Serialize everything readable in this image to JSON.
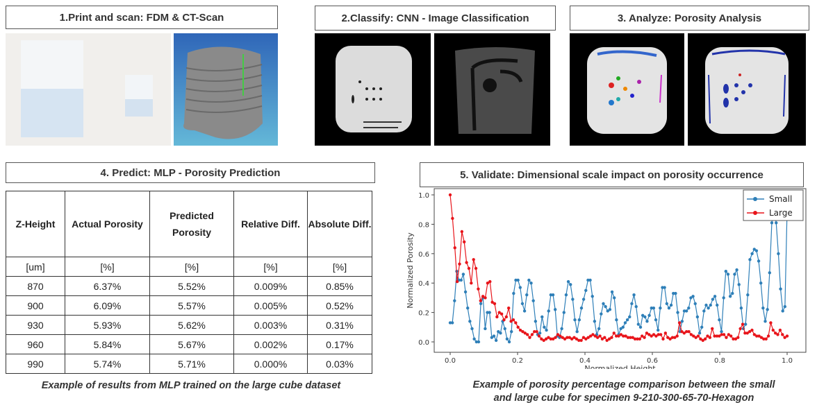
{
  "panels": {
    "p1": {
      "title": "1.Print and scan:  FDM & CT-Scan"
    },
    "p2": {
      "title": "2.Classify:  CNN - Image  Classification"
    },
    "p3": {
      "title": "3. Analyze:  Porosity  Analysis"
    },
    "p4": {
      "title": "4. Predict: MLP - Porosity  Prediction",
      "caption": "Example of results from MLP trained on the large cube dataset"
    },
    "p5": {
      "title": "5. Validate:  Dimensional  scale  impact  on  porosity  occurrence",
      "caption_line1": "Example of porosity percentage comparison between the small",
      "caption_line2": "and large cube for specimen 9-210-300-65-70-Hexagon"
    }
  },
  "table": {
    "headers": [
      "Z-Height",
      "Actual Porosity",
      "Predicted Porosity",
      "Relative Diff.",
      "Absolute Diff."
    ],
    "units": [
      "[um]",
      "[%]",
      "[%]",
      "[%]",
      "[%]"
    ],
    "rows": [
      [
        "870",
        "6.37%",
        "5.52%",
        "0.009%",
        "0.85%"
      ],
      [
        "900",
        "6.09%",
        "5.57%",
        "0.005%",
        "0.52%"
      ],
      [
        "930",
        "5.93%",
        "5.62%",
        "0.003%",
        "0.31%"
      ],
      [
        "960",
        "5.84%",
        "5.67%",
        "0.002%",
        "0.17%"
      ],
      [
        "990",
        "5.74%",
        "5.71%",
        "0.000%",
        "0.03%"
      ]
    ]
  },
  "chart_data": {
    "type": "line",
    "xlabel": "Normalized Height",
    "ylabel": "Normalized Porosity",
    "xlim": [
      0,
      1
    ],
    "ylim": [
      0,
      1
    ],
    "xticks": [
      "0.0",
      "0.2",
      "0.4",
      "0.6",
      "0.8",
      "1.0"
    ],
    "yticks": [
      "0.0",
      "0.2",
      "0.4",
      "0.6",
      "0.8",
      "1.0"
    ],
    "legend_position": "top-right",
    "x_spacing": "uniform from 0 to 1",
    "series": [
      {
        "name": "Small",
        "color": "#2e7fb8",
        "values": [
          0.13,
          0.13,
          0.28,
          0.48,
          0.42,
          0.42,
          0.46,
          0.34,
          0.23,
          0.14,
          0.09,
          0.02,
          0,
          0,
          0.26,
          0.3,
          0.09,
          0.2,
          0.2,
          0.03,
          0.04,
          0.01,
          0.07,
          0.06,
          0.14,
          0.09,
          0.02,
          0,
          0.07,
          0.33,
          0.42,
          0.42,
          0.37,
          0.26,
          0.21,
          0.32,
          0.42,
          0.4,
          0.28,
          0.14,
          0.05,
          0.06,
          0.17,
          0.1,
          0.08,
          0.21,
          0.32,
          0.32,
          0.22,
          0.04,
          0.03,
          0.09,
          0.2,
          0.32,
          0.41,
          0.39,
          0.29,
          0.15,
          0.07,
          0.15,
          0.23,
          0.29,
          0.35,
          0.42,
          0.42,
          0.31,
          0.14,
          0.05,
          0.09,
          0.19,
          0.26,
          0.24,
          0.21,
          0.22,
          0.34,
          0.3,
          0.15,
          0.05,
          0.09,
          0.1,
          0.13,
          0.15,
          0.17,
          0.26,
          0.32,
          0.24,
          0.12,
          0.1,
          0.18,
          0.17,
          0.14,
          0.18,
          0.23,
          0.23,
          0.15,
          0.08,
          0.23,
          0.37,
          0.37,
          0.26,
          0.23,
          0.25,
          0.33,
          0.33,
          0.2,
          0.07,
          0.14,
          0.21,
          0.21,
          0.23,
          0.3,
          0.31,
          0.26,
          0.17,
          0.06,
          0.1,
          0.21,
          0.25,
          0.23,
          0.25,
          0.29,
          0.31,
          0.25,
          0.15,
          0.07,
          0.3,
          0.48,
          0.46,
          0.31,
          0.33,
          0.46,
          0.49,
          0.39,
          0.23,
          0.09,
          0.12,
          0.32,
          0.56,
          0.6,
          0.63,
          0.62,
          0.55,
          0.4,
          0.23,
          0.14,
          0.22,
          0.47,
          0.81,
          0.9,
          0.81,
          0.6,
          0.36,
          0.21,
          0.24,
          0.9
        ]
      },
      {
        "name": "Large",
        "color": "#e8141a",
        "values": [
          1.0,
          0.84,
          0.64,
          0.41,
          0.53,
          0.75,
          0.68,
          0.54,
          0.5,
          0.4,
          0.56,
          0.5,
          0.36,
          0.28,
          0.31,
          0.3,
          0.4,
          0.41,
          0.27,
          0.26,
          0.17,
          0.2,
          0.19,
          0.15,
          0.17,
          0.23,
          0.14,
          0.15,
          0.13,
          0.1,
          0.08,
          0.07,
          0.06,
          0.05,
          0.03,
          0.05,
          0.07,
          0.07,
          0.04,
          0.02,
          0.01,
          0.02,
          0.03,
          0.02,
          0.02,
          0.03,
          0.05,
          0.04,
          0.03,
          0.02,
          0.03,
          0.03,
          0.02,
          0.03,
          0.02,
          0.01,
          0.01,
          0.03,
          0.02,
          0.03,
          0.04,
          0.05,
          0.04,
          0.03,
          0.04,
          0.02,
          0.03,
          0.01,
          0.02,
          0.03,
          0.06,
          0.04,
          0.04,
          0.05,
          0.04,
          0.04,
          0.03,
          0.03,
          0.03,
          0.02,
          0.02,
          0.02,
          0.04,
          0.03,
          0.06,
          0.05,
          0.04,
          0.05,
          0.04,
          0.05,
          0.05,
          0.02,
          0.06,
          0.03,
          0.02,
          0.03,
          0.03,
          0.04,
          0.13,
          0.07,
          0.06,
          0.07,
          0.07,
          0.05,
          0.04,
          0.03,
          0.04,
          0.02,
          0.01,
          0.02,
          0.04,
          0.03,
          0.09,
          0.04,
          0.04,
          0.04,
          0.05,
          0.05,
          0.03,
          0.05,
          0.04,
          0.02,
          0.02,
          0.03,
          0.09,
          0.12,
          0.06,
          0.06,
          0.07,
          0.08,
          0.05,
          0.04,
          0.04,
          0.03,
          0.02,
          0.02,
          0.04,
          0.13,
          0.08,
          0.06,
          0.05,
          0.08,
          0.05,
          0.03,
          0.04
        ]
      }
    ]
  }
}
